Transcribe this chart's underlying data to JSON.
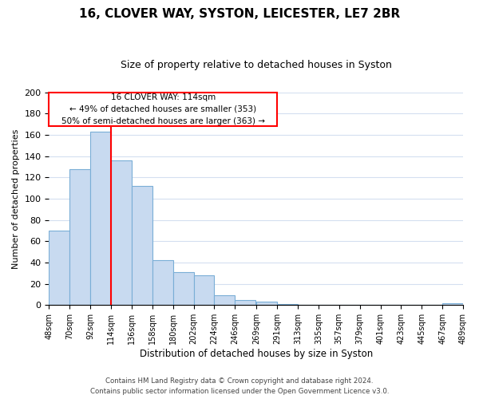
{
  "title": "16, CLOVER WAY, SYSTON, LEICESTER, LE7 2BR",
  "subtitle": "Size of property relative to detached houses in Syston",
  "xlabel": "Distribution of detached houses by size in Syston",
  "ylabel": "Number of detached properties",
  "bar_color": "#c8daf0",
  "bar_edge_color": "#7aaed6",
  "vline_x": 114,
  "vline_color": "red",
  "annotation_line1": "16 CLOVER WAY: 114sqm",
  "annotation_line2": "← 49% of detached houses are smaller (353)",
  "annotation_line3": "50% of semi-detached houses are larger (363) →",
  "bins": [
    48,
    70,
    92,
    114,
    136,
    158,
    180,
    202,
    224,
    246,
    269,
    291,
    313,
    335,
    357,
    379,
    401,
    423,
    445,
    467,
    489
  ],
  "counts": [
    70,
    128,
    163,
    136,
    112,
    42,
    31,
    28,
    9,
    5,
    3,
    1,
    0,
    0,
    0,
    0,
    0,
    0,
    0,
    2
  ],
  "ylim": [
    0,
    200
  ],
  "yticks": [
    0,
    20,
    40,
    60,
    80,
    100,
    120,
    140,
    160,
    180,
    200
  ],
  "footer_line1": "Contains HM Land Registry data © Crown copyright and database right 2024.",
  "footer_line2": "Contains public sector information licensed under the Open Government Licence v3.0.",
  "background_color": "#ffffff",
  "grid_color": "#d4dff0"
}
